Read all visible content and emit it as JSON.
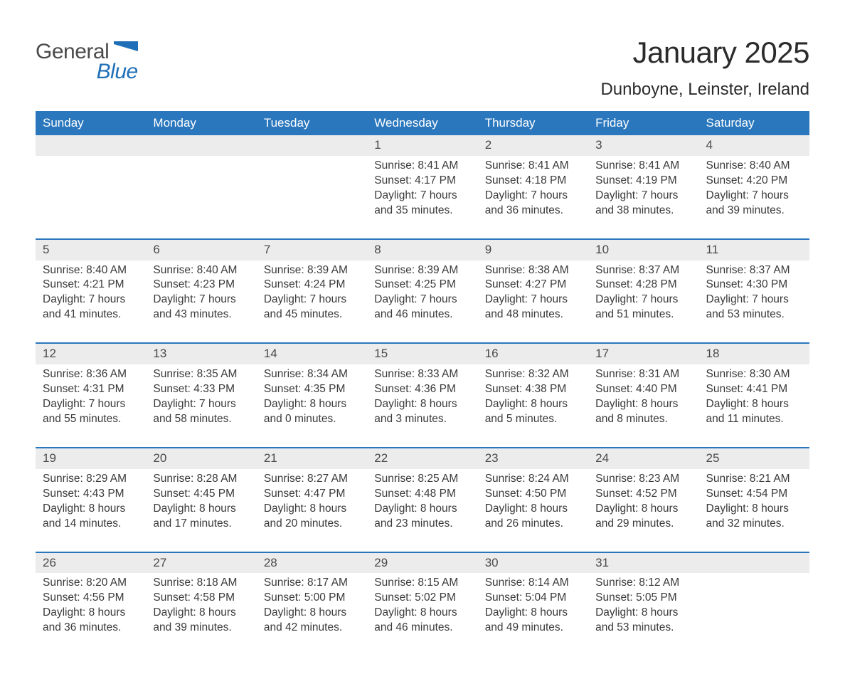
{
  "logo": {
    "general": "General",
    "blue": "Blue",
    "shape_color": "#1e6fb8"
  },
  "title": "January 2025",
  "location": "Dunboyne, Leinster, Ireland",
  "colors": {
    "header_bg": "#2a77bd",
    "header_text": "#ffffff",
    "daynum_bg": "#ececec",
    "rule": "#2a77bd",
    "body_text": "#3a3a3a"
  },
  "day_headers": [
    "Sunday",
    "Monday",
    "Tuesday",
    "Wednesday",
    "Thursday",
    "Friday",
    "Saturday"
  ],
  "weeks": [
    [
      null,
      null,
      null,
      {
        "n": "1",
        "sunrise": "Sunrise: 8:41 AM",
        "sunset": "Sunset: 4:17 PM",
        "d1": "Daylight: 7 hours",
        "d2": "and 35 minutes."
      },
      {
        "n": "2",
        "sunrise": "Sunrise: 8:41 AM",
        "sunset": "Sunset: 4:18 PM",
        "d1": "Daylight: 7 hours",
        "d2": "and 36 minutes."
      },
      {
        "n": "3",
        "sunrise": "Sunrise: 8:41 AM",
        "sunset": "Sunset: 4:19 PM",
        "d1": "Daylight: 7 hours",
        "d2": "and 38 minutes."
      },
      {
        "n": "4",
        "sunrise": "Sunrise: 8:40 AM",
        "sunset": "Sunset: 4:20 PM",
        "d1": "Daylight: 7 hours",
        "d2": "and 39 minutes."
      }
    ],
    [
      {
        "n": "5",
        "sunrise": "Sunrise: 8:40 AM",
        "sunset": "Sunset: 4:21 PM",
        "d1": "Daylight: 7 hours",
        "d2": "and 41 minutes."
      },
      {
        "n": "6",
        "sunrise": "Sunrise: 8:40 AM",
        "sunset": "Sunset: 4:23 PM",
        "d1": "Daylight: 7 hours",
        "d2": "and 43 minutes."
      },
      {
        "n": "7",
        "sunrise": "Sunrise: 8:39 AM",
        "sunset": "Sunset: 4:24 PM",
        "d1": "Daylight: 7 hours",
        "d2": "and 45 minutes."
      },
      {
        "n": "8",
        "sunrise": "Sunrise: 8:39 AM",
        "sunset": "Sunset: 4:25 PM",
        "d1": "Daylight: 7 hours",
        "d2": "and 46 minutes."
      },
      {
        "n": "9",
        "sunrise": "Sunrise: 8:38 AM",
        "sunset": "Sunset: 4:27 PM",
        "d1": "Daylight: 7 hours",
        "d2": "and 48 minutes."
      },
      {
        "n": "10",
        "sunrise": "Sunrise: 8:37 AM",
        "sunset": "Sunset: 4:28 PM",
        "d1": "Daylight: 7 hours",
        "d2": "and 51 minutes."
      },
      {
        "n": "11",
        "sunrise": "Sunrise: 8:37 AM",
        "sunset": "Sunset: 4:30 PM",
        "d1": "Daylight: 7 hours",
        "d2": "and 53 minutes."
      }
    ],
    [
      {
        "n": "12",
        "sunrise": "Sunrise: 8:36 AM",
        "sunset": "Sunset: 4:31 PM",
        "d1": "Daylight: 7 hours",
        "d2": "and 55 minutes."
      },
      {
        "n": "13",
        "sunrise": "Sunrise: 8:35 AM",
        "sunset": "Sunset: 4:33 PM",
        "d1": "Daylight: 7 hours",
        "d2": "and 58 minutes."
      },
      {
        "n": "14",
        "sunrise": "Sunrise: 8:34 AM",
        "sunset": "Sunset: 4:35 PM",
        "d1": "Daylight: 8 hours",
        "d2": "and 0 minutes."
      },
      {
        "n": "15",
        "sunrise": "Sunrise: 8:33 AM",
        "sunset": "Sunset: 4:36 PM",
        "d1": "Daylight: 8 hours",
        "d2": "and 3 minutes."
      },
      {
        "n": "16",
        "sunrise": "Sunrise: 8:32 AM",
        "sunset": "Sunset: 4:38 PM",
        "d1": "Daylight: 8 hours",
        "d2": "and 5 minutes."
      },
      {
        "n": "17",
        "sunrise": "Sunrise: 8:31 AM",
        "sunset": "Sunset: 4:40 PM",
        "d1": "Daylight: 8 hours",
        "d2": "and 8 minutes."
      },
      {
        "n": "18",
        "sunrise": "Sunrise: 8:30 AM",
        "sunset": "Sunset: 4:41 PM",
        "d1": "Daylight: 8 hours",
        "d2": "and 11 minutes."
      }
    ],
    [
      {
        "n": "19",
        "sunrise": "Sunrise: 8:29 AM",
        "sunset": "Sunset: 4:43 PM",
        "d1": "Daylight: 8 hours",
        "d2": "and 14 minutes."
      },
      {
        "n": "20",
        "sunrise": "Sunrise: 8:28 AM",
        "sunset": "Sunset: 4:45 PM",
        "d1": "Daylight: 8 hours",
        "d2": "and 17 minutes."
      },
      {
        "n": "21",
        "sunrise": "Sunrise: 8:27 AM",
        "sunset": "Sunset: 4:47 PM",
        "d1": "Daylight: 8 hours",
        "d2": "and 20 minutes."
      },
      {
        "n": "22",
        "sunrise": "Sunrise: 8:25 AM",
        "sunset": "Sunset: 4:48 PM",
        "d1": "Daylight: 8 hours",
        "d2": "and 23 minutes."
      },
      {
        "n": "23",
        "sunrise": "Sunrise: 8:24 AM",
        "sunset": "Sunset: 4:50 PM",
        "d1": "Daylight: 8 hours",
        "d2": "and 26 minutes."
      },
      {
        "n": "24",
        "sunrise": "Sunrise: 8:23 AM",
        "sunset": "Sunset: 4:52 PM",
        "d1": "Daylight: 8 hours",
        "d2": "and 29 minutes."
      },
      {
        "n": "25",
        "sunrise": "Sunrise: 8:21 AM",
        "sunset": "Sunset: 4:54 PM",
        "d1": "Daylight: 8 hours",
        "d2": "and 32 minutes."
      }
    ],
    [
      {
        "n": "26",
        "sunrise": "Sunrise: 8:20 AM",
        "sunset": "Sunset: 4:56 PM",
        "d1": "Daylight: 8 hours",
        "d2": "and 36 minutes."
      },
      {
        "n": "27",
        "sunrise": "Sunrise: 8:18 AM",
        "sunset": "Sunset: 4:58 PM",
        "d1": "Daylight: 8 hours",
        "d2": "and 39 minutes."
      },
      {
        "n": "28",
        "sunrise": "Sunrise: 8:17 AM",
        "sunset": "Sunset: 5:00 PM",
        "d1": "Daylight: 8 hours",
        "d2": "and 42 minutes."
      },
      {
        "n": "29",
        "sunrise": "Sunrise: 8:15 AM",
        "sunset": "Sunset: 5:02 PM",
        "d1": "Daylight: 8 hours",
        "d2": "and 46 minutes."
      },
      {
        "n": "30",
        "sunrise": "Sunrise: 8:14 AM",
        "sunset": "Sunset: 5:04 PM",
        "d1": "Daylight: 8 hours",
        "d2": "and 49 minutes."
      },
      {
        "n": "31",
        "sunrise": "Sunrise: 8:12 AM",
        "sunset": "Sunset: 5:05 PM",
        "d1": "Daylight: 8 hours",
        "d2": "and 53 minutes."
      },
      null
    ]
  ]
}
